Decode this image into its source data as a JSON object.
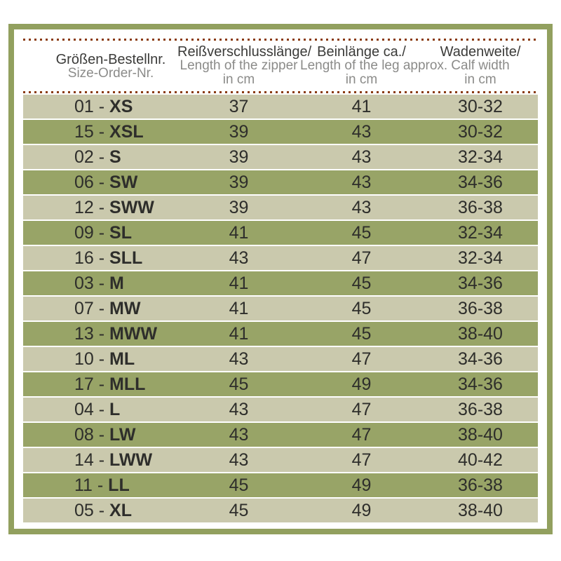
{
  "colors": {
    "frame_border": "#92a05f",
    "row_light": "#cac9ad",
    "row_dark": "#98a467",
    "dotted_line": "#8a3a10",
    "header_primary_text": "#3b3b39",
    "header_secondary_text": "#8b8b89",
    "row_text": "#2e2e2b",
    "background": "#ffffff"
  },
  "table": {
    "separator": " - "
  },
  "chart_data": {
    "type": "table",
    "columns": [
      {
        "de": "Größen-Bestellnr.",
        "en": "Size-Order-Nr.",
        "unit": ""
      },
      {
        "de": "Reißverschlusslänge/",
        "en": "Length of the zipper",
        "unit": "in cm"
      },
      {
        "de": "Beinlänge ca./",
        "en": "Length of the leg approx.",
        "unit": "in cm"
      },
      {
        "de": "Wadenweite/",
        "en": "Calf width",
        "unit": "in cm"
      }
    ],
    "rows": [
      {
        "order_nr": "01",
        "size": "XS",
        "zipper_cm": "37",
        "leg_cm": "41",
        "calf_cm": "30-32"
      },
      {
        "order_nr": "15",
        "size": "XSL",
        "zipper_cm": "39",
        "leg_cm": "43",
        "calf_cm": "30-32"
      },
      {
        "order_nr": "02",
        "size": "S",
        "zipper_cm": "39",
        "leg_cm": "43",
        "calf_cm": "32-34"
      },
      {
        "order_nr": "06",
        "size": "SW",
        "zipper_cm": "39",
        "leg_cm": "43",
        "calf_cm": "34-36"
      },
      {
        "order_nr": "12",
        "size": "SWW",
        "zipper_cm": "39",
        "leg_cm": "43",
        "calf_cm": "36-38"
      },
      {
        "order_nr": "09",
        "size": "SL",
        "zipper_cm": "41",
        "leg_cm": "45",
        "calf_cm": "32-34"
      },
      {
        "order_nr": "16",
        "size": "SLL",
        "zipper_cm": "43",
        "leg_cm": "47",
        "calf_cm": "32-34"
      },
      {
        "order_nr": "03",
        "size": "M",
        "zipper_cm": "41",
        "leg_cm": "45",
        "calf_cm": "34-36"
      },
      {
        "order_nr": "07",
        "size": "MW",
        "zipper_cm": "41",
        "leg_cm": "45",
        "calf_cm": "36-38"
      },
      {
        "order_nr": "13",
        "size": "MWW",
        "zipper_cm": "41",
        "leg_cm": "45",
        "calf_cm": "38-40"
      },
      {
        "order_nr": "10",
        "size": "ML",
        "zipper_cm": "43",
        "leg_cm": "47",
        "calf_cm": "34-36"
      },
      {
        "order_nr": "17",
        "size": "MLL",
        "zipper_cm": "45",
        "leg_cm": "49",
        "calf_cm": "34-36"
      },
      {
        "order_nr": "04",
        "size": "L",
        "zipper_cm": "43",
        "leg_cm": "47",
        "calf_cm": "36-38"
      },
      {
        "order_nr": "08",
        "size": "LW",
        "zipper_cm": "43",
        "leg_cm": "47",
        "calf_cm": "38-40"
      },
      {
        "order_nr": "14",
        "size": "LWW",
        "zipper_cm": "43",
        "leg_cm": "47",
        "calf_cm": "40-42"
      },
      {
        "order_nr": "11",
        "size": "LL",
        "zipper_cm": "45",
        "leg_cm": "49",
        "calf_cm": "36-38"
      },
      {
        "order_nr": "05",
        "size": "XL",
        "zipper_cm": "45",
        "leg_cm": "49",
        "calf_cm": "38-40"
      }
    ]
  }
}
